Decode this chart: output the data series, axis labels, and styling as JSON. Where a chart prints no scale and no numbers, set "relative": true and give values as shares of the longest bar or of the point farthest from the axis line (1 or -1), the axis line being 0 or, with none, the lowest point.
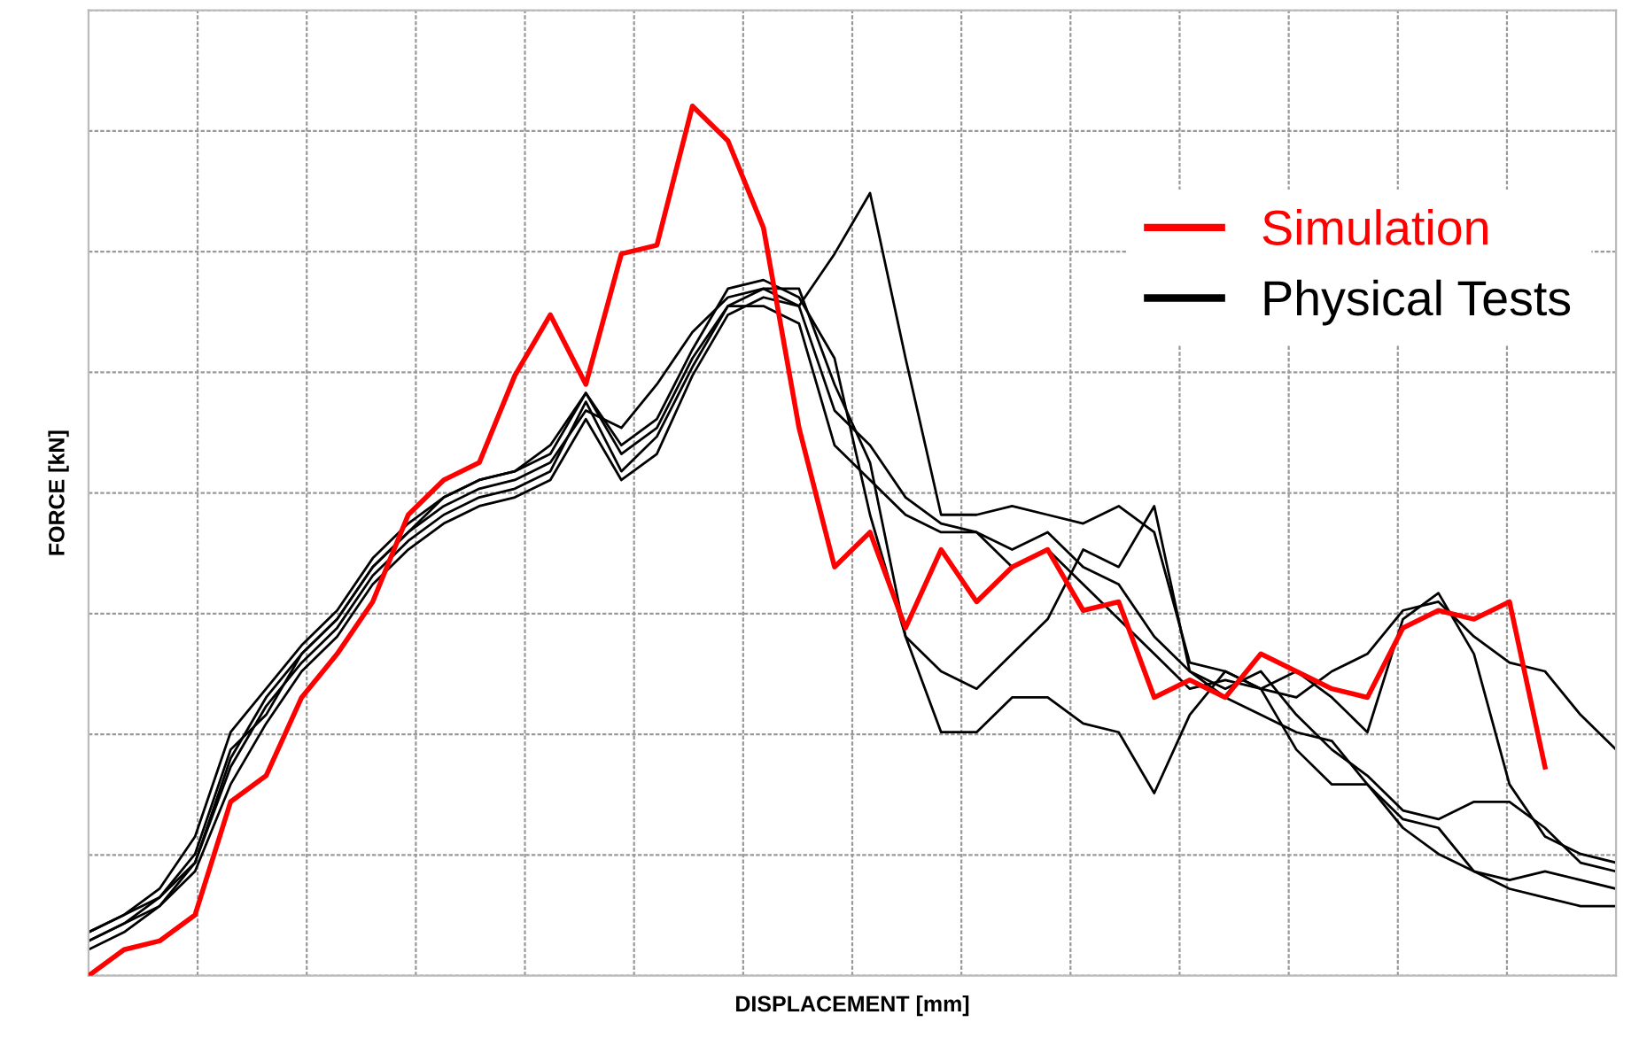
{
  "chart_data": {
    "type": "line",
    "relative": true,
    "xlabel": "DISPLACEMENT [mm]",
    "ylabel": "FORCE [kN]",
    "grid": true,
    "legend": "top right",
    "categories": [
      null,
      null,
      null,
      null,
      null,
      null,
      null,
      null,
      null,
      null,
      null,
      null,
      null,
      null,
      null,
      null,
      null,
      null,
      null,
      null,
      null,
      null,
      null,
      null,
      null,
      null,
      null,
      null,
      null,
      null,
      null,
      null,
      null,
      null,
      null,
      null,
      null,
      null,
      null,
      null,
      null,
      null,
      null,
      null
    ],
    "series": [
      {
        "name": "Physical Tests",
        "color": "#000000",
        "values": [
          0.05,
          0.07,
          0.09,
          0.14,
          0.26,
          0.3,
          0.37,
          0.41,
          0.47,
          0.51,
          0.54,
          0.56,
          0.57,
          0.59,
          0.65,
          0.63,
          0.68,
          0.74,
          0.78,
          0.79,
          0.77,
          0.83,
          0.9,
          0.71,
          0.53,
          0.53,
          0.54,
          0.53,
          0.52,
          0.54,
          0.51,
          0.36,
          0.35,
          0.33,
          0.26,
          0.22,
          0.22,
          0.18,
          0.17,
          0.12,
          0.1,
          0.09,
          0.08,
          0.08
        ]
      },
      {
        "color": "#000000",
        "values": [
          0.05,
          0.07,
          0.1,
          0.16,
          0.28,
          0.33,
          0.38,
          0.42,
          0.48,
          0.52,
          0.55,
          0.57,
          0.58,
          0.6,
          0.67,
          0.61,
          0.64,
          0.72,
          0.79,
          0.8,
          0.78,
          0.71,
          0.53,
          0.39,
          0.28,
          0.28,
          0.32,
          0.32,
          0.29,
          0.28,
          0.21,
          0.3,
          0.35,
          0.33,
          0.32,
          0.35,
          0.37,
          0.42,
          0.43,
          0.39,
          0.36,
          0.35,
          0.3,
          0.26
        ]
      },
      {
        "color": "#000000",
        "values": [
          0.04,
          0.06,
          0.09,
          0.13,
          0.24,
          0.31,
          0.36,
          0.4,
          0.46,
          0.5,
          0.53,
          0.55,
          0.56,
          0.58,
          0.66,
          0.58,
          0.62,
          0.7,
          0.77,
          0.79,
          0.79,
          0.68,
          0.59,
          0.39,
          0.35,
          0.33,
          0.37,
          0.41,
          0.49,
          0.47,
          0.54,
          0.35,
          0.33,
          0.35,
          0.3,
          0.26,
          0.23,
          0.19,
          0.18,
          0.2,
          0.2,
          0.17,
          0.13,
          0.12
        ]
      },
      {
        "color": "#000000",
        "values": [
          0.03,
          0.05,
          0.08,
          0.12,
          0.22,
          0.29,
          0.35,
          0.39,
          0.45,
          0.49,
          0.52,
          0.54,
          0.55,
          0.57,
          0.64,
          0.57,
          0.6,
          0.69,
          0.76,
          0.78,
          0.77,
          0.65,
          0.61,
          0.55,
          0.52,
          0.51,
          0.49,
          0.51,
          0.47,
          0.45,
          0.39,
          0.35,
          0.32,
          0.3,
          0.28,
          0.27,
          0.22,
          0.17,
          0.14,
          0.12,
          0.11,
          0.12,
          0.11,
          0.1
        ]
      },
      {
        "color": "#000000",
        "values": [
          0.04,
          0.06,
          0.08,
          0.13,
          0.25,
          0.32,
          0.37,
          0.41,
          0.47,
          0.51,
          0.55,
          0.57,
          0.58,
          0.61,
          0.67,
          0.6,
          0.63,
          0.71,
          0.77,
          0.77,
          0.75,
          0.61,
          0.57,
          0.53,
          0.51,
          0.51,
          0.47,
          0.49,
          0.45,
          0.41,
          0.37,
          0.33,
          0.34,
          0.33,
          0.35,
          0.32,
          0.28,
          0.41,
          0.44,
          0.37,
          0.22,
          0.16,
          0.14,
          0.13
        ]
      },
      {
        "name": "Simulation",
        "color": "#ff0000",
        "values": [
          0.0,
          0.03,
          0.04,
          0.07,
          0.2,
          0.23,
          0.32,
          0.37,
          0.43,
          0.53,
          0.57,
          0.59,
          0.69,
          0.76,
          0.68,
          0.83,
          0.84,
          1.0,
          0.96,
          0.86,
          0.63,
          0.47,
          0.51,
          0.4,
          0.49,
          0.43,
          0.47,
          0.49,
          0.42,
          0.43,
          0.32,
          0.34,
          0.32,
          0.37,
          0.35,
          0.33,
          0.32,
          0.4,
          0.42,
          0.41,
          0.43,
          0.24,
          null,
          null
        ]
      }
    ]
  }
}
